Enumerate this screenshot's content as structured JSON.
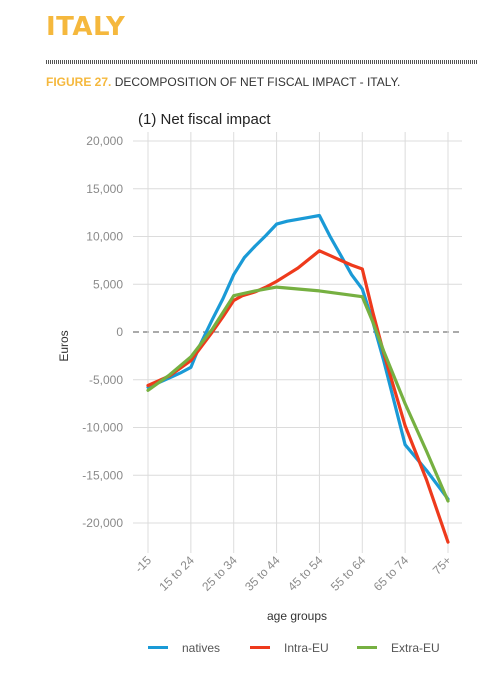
{
  "page": {
    "heading": "ITALY",
    "figure_number": "FIGURE 27.",
    "figure_caption": "DECOMPOSITION OF NET FISCAL IMPACT - ITALY."
  },
  "chart_data": {
    "type": "line",
    "title": "(1) Net fiscal impact",
    "xlabel": "age groups",
    "ylabel": "Euros",
    "categories": [
      "-15",
      "15 to 24",
      "25 to 34",
      "35 to 44",
      "45 to 54",
      "55 to 64",
      "65 to 74",
      "75+"
    ],
    "y_ticks": [
      20000,
      15000,
      10000,
      5000,
      0,
      -5000,
      -10000,
      -15000,
      -20000
    ],
    "y_tick_labels": [
      "20,000",
      "15,000",
      "10,000",
      "5,000",
      "0",
      "-5,000",
      "-10,000",
      "-15,000",
      "-20,000"
    ],
    "ylim": [
      -22000,
      20000
    ],
    "grid": true,
    "zero_line": "dashed",
    "legend_position": "bottom",
    "series": [
      {
        "name": "natives",
        "color": "#1a9ad6",
        "x": [
          0,
          0.55,
          0.75,
          1.0,
          1.2,
          1.5,
          1.75,
          2.0,
          2.25,
          2.5,
          2.75,
          3.0,
          3.25,
          3.5,
          3.75,
          4.0,
          4.25,
          4.5,
          4.75,
          5.0,
          5.25,
          5.5,
          6.0,
          6.5,
          7.0
        ],
        "values": [
          -5800,
          -4700,
          -4300,
          -3700,
          -1500,
          1300,
          3500,
          6000,
          7800,
          9000,
          10100,
          11300,
          11600,
          11800,
          12000,
          12200,
          10000,
          8000,
          6000,
          4500,
          1000,
          -3000,
          -11800,
          -14500,
          -17500
        ]
      },
      {
        "name": "Intra-EU",
        "color": "#ee3a1c",
        "x": [
          0,
          0.5,
          1.0,
          1.25,
          1.5,
          1.75,
          2.0,
          2.2,
          2.5,
          2.75,
          3.0,
          3.25,
          3.5,
          3.75,
          4.0,
          4.25,
          4.5,
          4.75,
          5.0,
          5.25,
          5.5,
          6.0,
          6.5,
          7.0
        ],
        "values": [
          -5600,
          -4600,
          -3000,
          -1500,
          0,
          1600,
          3300,
          3800,
          4200,
          4700,
          5300,
          6000,
          6700,
          7600,
          8500,
          8000,
          7500,
          7000,
          6600,
          2000,
          -2200,
          -9800,
          -15500,
          -22000
        ]
      },
      {
        "name": "Extra-EU",
        "color": "#76b041",
        "x": [
          0,
          0.5,
          1.0,
          1.5,
          2.0,
          2.5,
          3.0,
          3.5,
          4.0,
          4.5,
          5.0,
          5.25,
          5.5,
          6.0,
          6.5,
          7.0
        ],
        "values": [
          -6100,
          -4500,
          -2600,
          300,
          3800,
          4300,
          4700,
          4500,
          4300,
          4000,
          3700,
          1000,
          -2000,
          -7500,
          -12500,
          -17700
        ]
      }
    ]
  }
}
